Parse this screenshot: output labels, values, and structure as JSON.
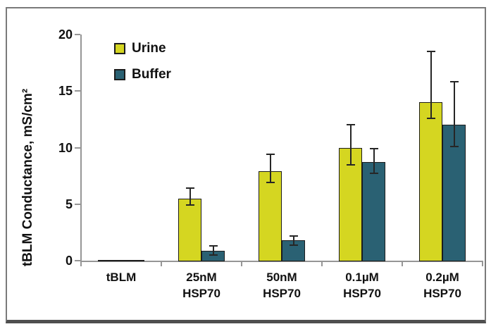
{
  "figure": {
    "background": "#ffffff",
    "frame_border_color": "#7a7a7a",
    "frame_bottom_color": "#4f4f4f"
  },
  "chart_data": {
    "type": "bar",
    "title": "",
    "xlabel": "",
    "ylabel": "tBLM Conductance, mS/cm²",
    "ylim": [
      0,
      20
    ],
    "yticks": [
      0,
      5,
      10,
      15,
      20
    ],
    "grid": false,
    "legend_position": "top-left-inside",
    "legend_entries": [
      "Urine",
      "Buffer"
    ],
    "categories": [
      "tBLM",
      "25nM HSP70",
      "50nM HSP70",
      "0.1µM HSP70",
      "0.2µM HSP70"
    ],
    "category_label_lines": [
      [
        "tBLM"
      ],
      [
        "25nM",
        "HSP70"
      ],
      [
        "50nM",
        "HSP70"
      ],
      [
        "0.1µM",
        "HSP70"
      ],
      [
        "0.2µM",
        "HSP70"
      ]
    ],
    "series": [
      {
        "name": "Urine",
        "color": "#d5d621",
        "values": [
          0.08,
          5.5,
          7.9,
          10.0,
          14.0
        ],
        "error_ranges": [
          null,
          [
            4.9,
            6.4
          ],
          [
            6.9,
            9.4
          ],
          [
            8.5,
            12.0
          ],
          [
            12.6,
            18.5
          ]
        ]
      },
      {
        "name": "Buffer",
        "color": "#2a6173",
        "values": [
          0.08,
          0.9,
          1.8,
          8.7,
          12.0
        ],
        "error_ranges": [
          null,
          [
            0.5,
            1.3
          ],
          [
            1.4,
            2.2
          ],
          [
            7.7,
            9.9
          ],
          [
            10.1,
            15.8
          ]
        ]
      }
    ],
    "bar_outline_color": "#1c1c1c",
    "error_bar_color": "#262626",
    "axis_color": "#969696",
    "text_color": "#111111"
  }
}
